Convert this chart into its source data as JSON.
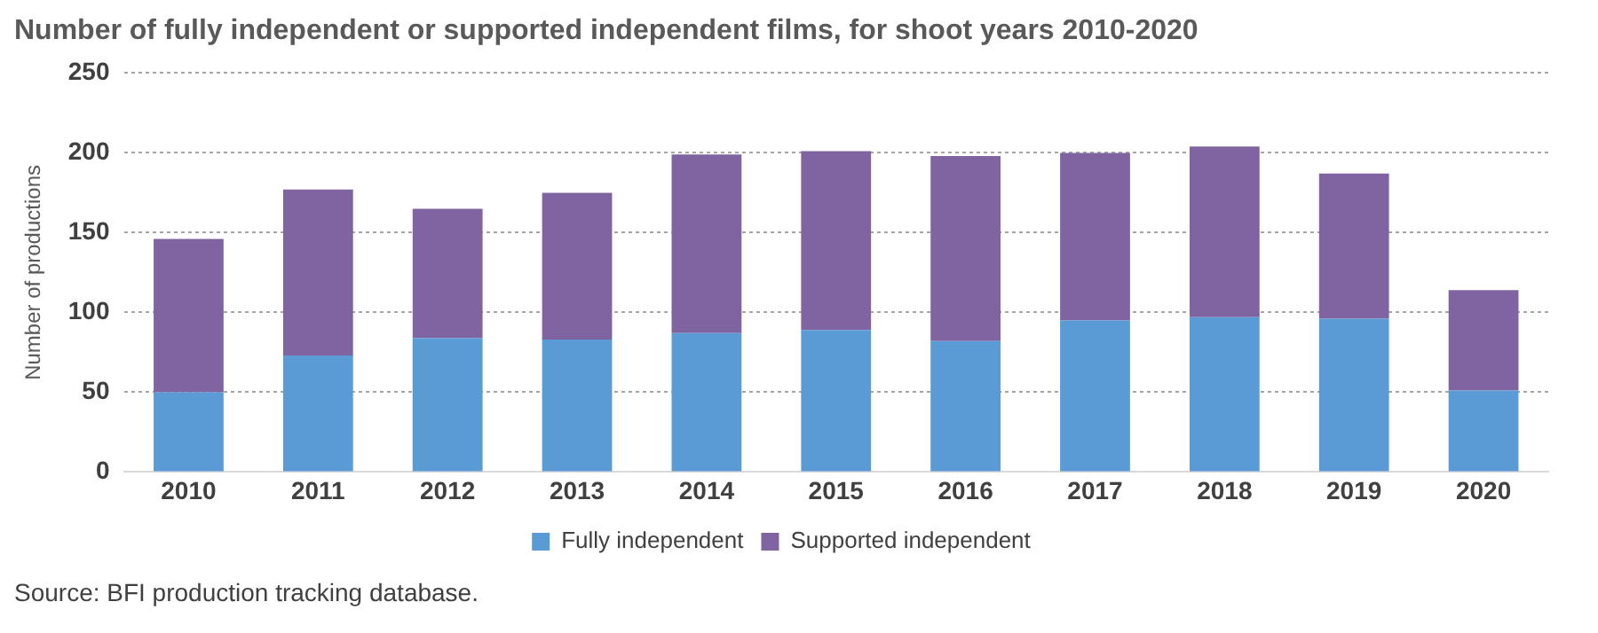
{
  "chart_data": {
    "type": "bar",
    "title": "Number of fully independent or supported independent films, for shoot years 2010-2020",
    "ylabel": "Number of productions",
    "categories": [
      "2010",
      "2011",
      "2012",
      "2013",
      "2014",
      "2015",
      "2016",
      "2017",
      "2018",
      "2019",
      "2020"
    ],
    "series": [
      {
        "name": "Fully independent",
        "color": "#5b9bd5",
        "values": [
          50,
          73,
          84,
          83,
          87,
          89,
          82,
          95,
          97,
          96,
          51
        ]
      },
      {
        "name": "Supported independent",
        "color": "#8064a2",
        "values": [
          96,
          104,
          81,
          92,
          112,
          112,
          116,
          105,
          107,
          91,
          63
        ]
      }
    ],
    "stacked": true,
    "ylim": [
      0,
      250
    ],
    "yticks": [
      0,
      50,
      100,
      150,
      200,
      250
    ],
    "grid": "y",
    "legend": "bottom",
    "annotations": [
      "Source: BFI production tracking database."
    ]
  }
}
